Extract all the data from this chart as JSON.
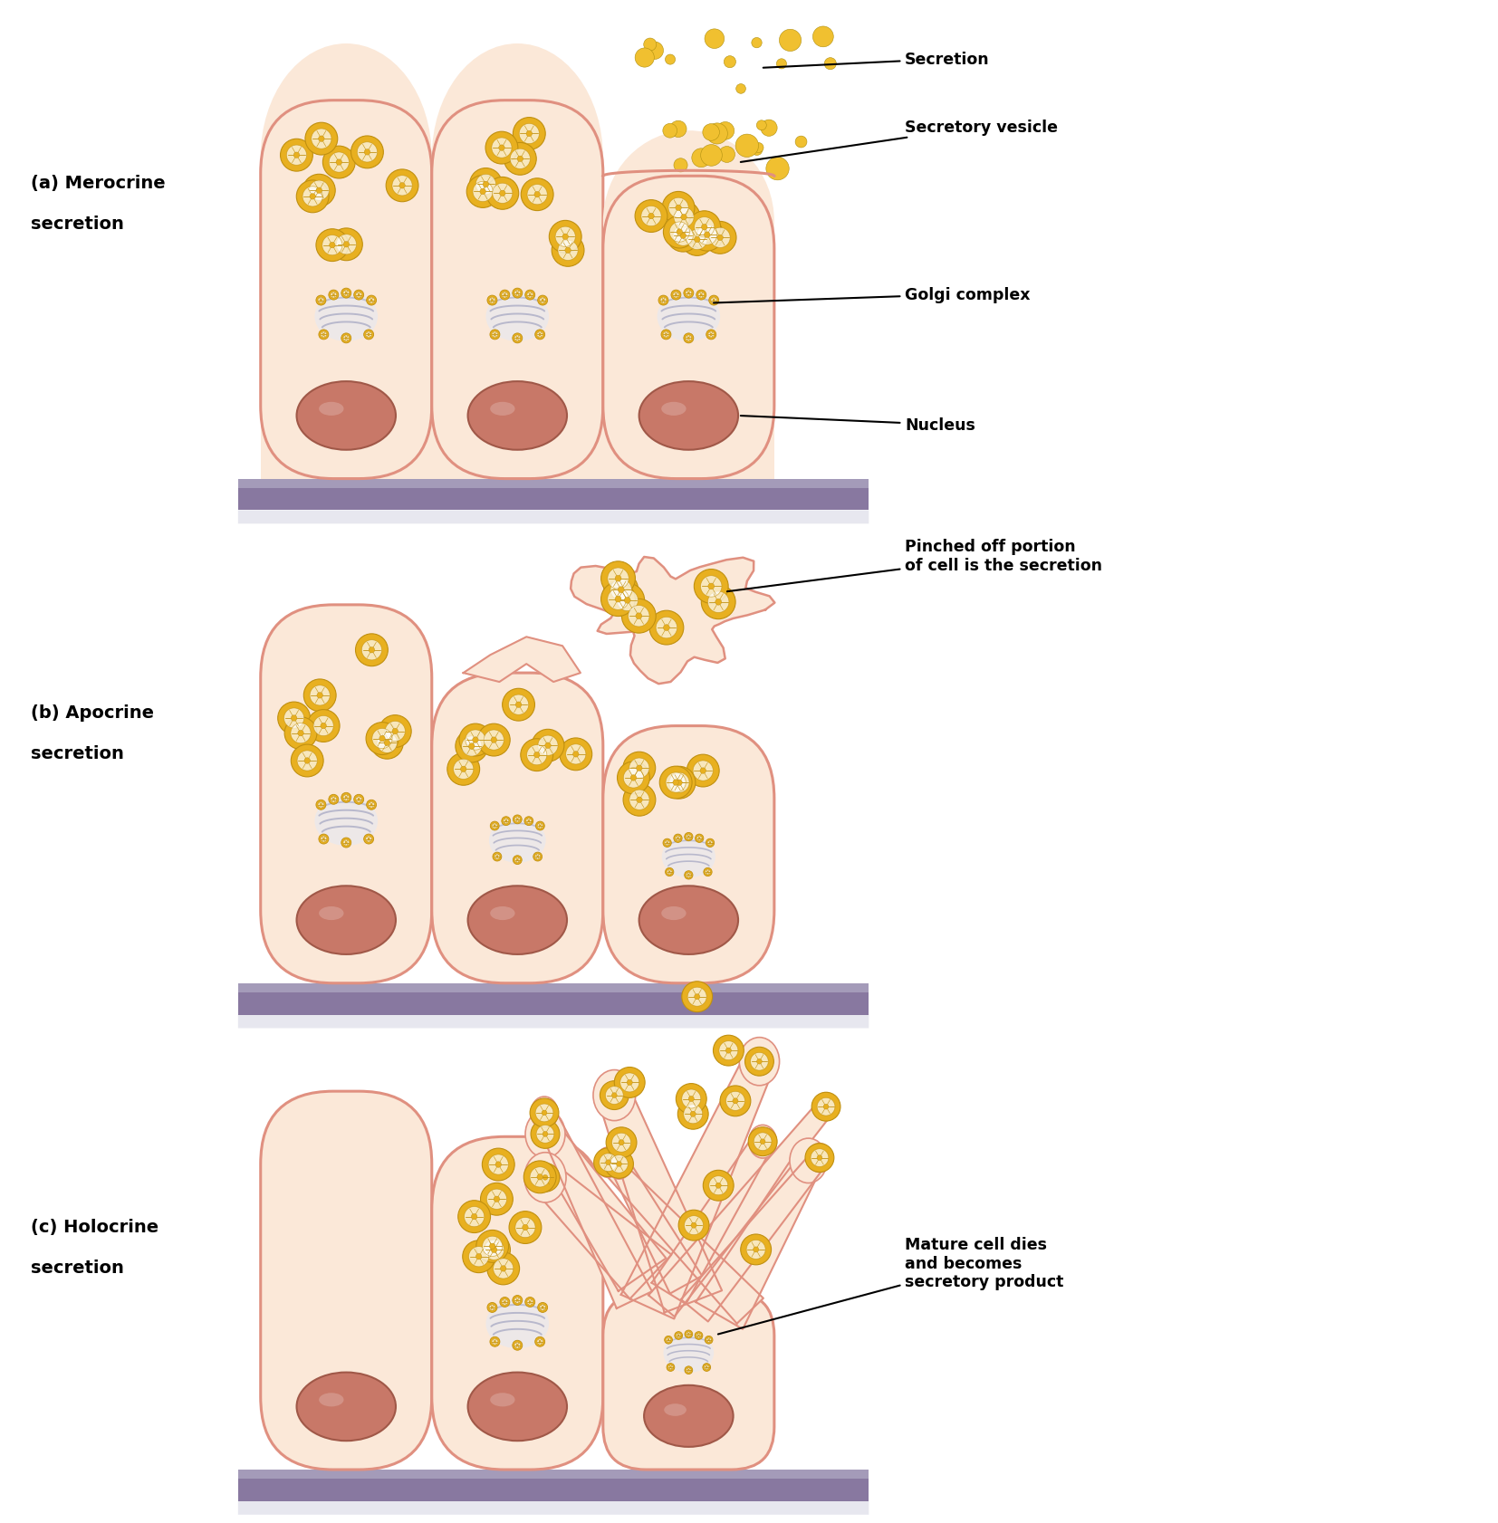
{
  "fig_width": 16.54,
  "fig_height": 16.83,
  "dpi": 100,
  "bg_color": "#ffffff",
  "cell_fill": "#fbe8d8",
  "cell_fill_light": "#fdf0e6",
  "cell_edge": "#e09080",
  "cell_edge_width": 2.2,
  "nucleus_fill": "#c87868",
  "nucleus_edge": "#a05848",
  "nucleus_fill2": "#b86858",
  "golgi_color": "#b8b8cc",
  "golgi_fill": "#e8e8f0",
  "vesicle_fill": "#e8b020",
  "vesicle_edge": "#c09010",
  "vesicle_fill2": "#f0c030",
  "base_fill": "#8878a0",
  "base_shadow": "#d0d0e0",
  "secretion_dot": "#f0c030",
  "ann_color": "#000000",
  "label_a_line1": "(a) Merocrine",
  "label_a_line2": "secretion",
  "label_b_line1": "(b) Apocrine",
  "label_b_line2": "secretion",
  "label_c_line1": "(c) Holocrine",
  "label_c_line2": "secretion",
  "ann_secretion": "Secretion",
  "ann_vesicle": "Secretory vesicle",
  "ann_golgi": "Golgi complex",
  "ann_nucleus": "Nucleus",
  "ann_pinched_1": "Pinched off portion",
  "ann_pinched_2": "of cell is the secretion",
  "ann_mature_1": "Mature cell dies",
  "ann_mature_2": "and becomes",
  "ann_mature_3": "secretory product",
  "font_size_label": 14,
  "font_size_ann": 12.5
}
